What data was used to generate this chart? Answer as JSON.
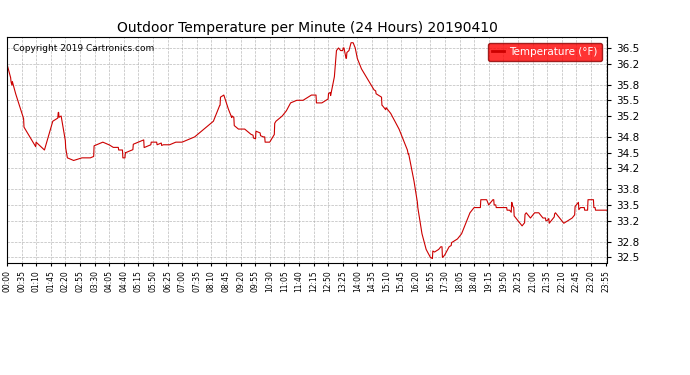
{
  "title": "Outdoor Temperature per Minute (24 Hours) 20190410",
  "copyright_text": "Copyright 2019 Cartronics.com",
  "legend_label": "Temperature (°F)",
  "line_color": "#cc0000",
  "background_color": "#ffffff",
  "plot_bg_color": "#ffffff",
  "grid_color": "#aaaaaa",
  "ylim": [
    32.4,
    36.7
  ],
  "yticks": [
    32.5,
    32.8,
    33.2,
    33.5,
    33.8,
    34.2,
    34.5,
    34.8,
    35.2,
    35.5,
    35.8,
    36.2,
    36.5
  ],
  "total_minutes": 1440,
  "tick_step": 35
}
